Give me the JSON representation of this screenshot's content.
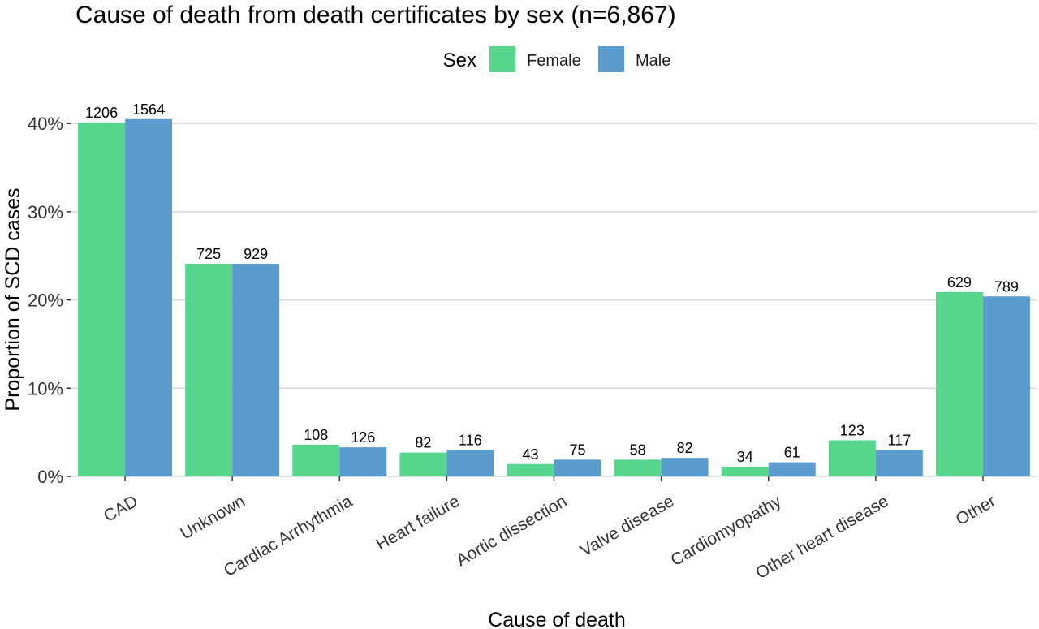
{
  "chart_data": {
    "type": "bar",
    "title": "Cause of death from death certificates by sex (n=6,867)",
    "xlabel": "Cause of death",
    "ylabel": "Proportion of SCD cases",
    "ylim": [
      0,
      0.44
    ],
    "yticks": [
      {
        "value": 0,
        "label": "0%"
      },
      {
        "value": 0.1,
        "label": "10%"
      },
      {
        "value": 0.2,
        "label": "20%"
      },
      {
        "value": 0.3,
        "label": "30%"
      },
      {
        "value": 0.4,
        "label": "40%"
      }
    ],
    "grid": true,
    "legend": {
      "title": "Sex",
      "position": "top"
    },
    "categories": [
      "CAD",
      "Unknown",
      "Cardiac Arrhythmia",
      "Heart failure",
      "Aortic dissection",
      "Valve disease",
      "Cardiomyopathy",
      "Other heart disease",
      "Other"
    ],
    "series": [
      {
        "name": "Female",
        "color": "#57d68d",
        "values": [
          0.401,
          0.241,
          0.036,
          0.027,
          0.014,
          0.019,
          0.011,
          0.041,
          0.209
        ],
        "labels": [
          "1206",
          "725",
          "108",
          "82",
          "43",
          "58",
          "34",
          "123",
          "629"
        ]
      },
      {
        "name": "Male",
        "color": "#5b9bcd",
        "values": [
          0.405,
          0.241,
          0.033,
          0.03,
          0.019,
          0.021,
          0.016,
          0.03,
          0.204
        ],
        "labels": [
          "1564",
          "929",
          "126",
          "116",
          "75",
          "82",
          "61",
          "117",
          "789"
        ]
      }
    ]
  }
}
